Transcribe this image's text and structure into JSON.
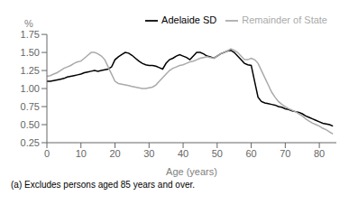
{
  "chart_data": {
    "type": "line",
    "xlabel": "Age (years)",
    "ylabel": "%",
    "annotations": [
      "(a) Excludes persons aged 85 years and over."
    ],
    "x": [
      0,
      1,
      2,
      3,
      4,
      5,
      6,
      7,
      8,
      9,
      10,
      11,
      12,
      13,
      14,
      15,
      16,
      17,
      18,
      19,
      20,
      21,
      22,
      23,
      24,
      25,
      26,
      27,
      28,
      29,
      30,
      31,
      32,
      33,
      34,
      35,
      36,
      37,
      38,
      39,
      40,
      41,
      42,
      43,
      44,
      45,
      46,
      47,
      48,
      49,
      50,
      51,
      52,
      53,
      54,
      55,
      56,
      57,
      58,
      59,
      60,
      61,
      62,
      63,
      64,
      65,
      66,
      67,
      68,
      69,
      70,
      71,
      72,
      73,
      74,
      75,
      76,
      77,
      78,
      79,
      80,
      81,
      82,
      83,
      84
    ],
    "series": [
      {
        "name": "Adelaide SD",
        "color": "#000000",
        "values": [
          1.1,
          1.1,
          1.11,
          1.12,
          1.13,
          1.14,
          1.16,
          1.17,
          1.18,
          1.19,
          1.2,
          1.22,
          1.23,
          1.24,
          1.25,
          1.24,
          1.25,
          1.26,
          1.27,
          1.3,
          1.4,
          1.44,
          1.47,
          1.5,
          1.49,
          1.46,
          1.42,
          1.38,
          1.35,
          1.33,
          1.32,
          1.32,
          1.31,
          1.29,
          1.27,
          1.35,
          1.4,
          1.42,
          1.45,
          1.47,
          1.45,
          1.43,
          1.4,
          1.45,
          1.5,
          1.5,
          1.48,
          1.45,
          1.44,
          1.42,
          1.45,
          1.48,
          1.5,
          1.52,
          1.53,
          1.5,
          1.45,
          1.4,
          1.35,
          1.33,
          1.32,
          1.1,
          0.88,
          0.82,
          0.8,
          0.79,
          0.78,
          0.77,
          0.75,
          0.74,
          0.72,
          0.71,
          0.69,
          0.68,
          0.67,
          0.65,
          0.62,
          0.6,
          0.58,
          0.56,
          0.54,
          0.52,
          0.51,
          0.5,
          0.48
        ]
      },
      {
        "name": "Remainder of State",
        "color": "#aaaaaa",
        "values": [
          1.17,
          1.18,
          1.2,
          1.22,
          1.25,
          1.28,
          1.3,
          1.32,
          1.35,
          1.37,
          1.38,
          1.42,
          1.46,
          1.5,
          1.5,
          1.48,
          1.45,
          1.4,
          1.3,
          1.2,
          1.1,
          1.07,
          1.06,
          1.05,
          1.04,
          1.03,
          1.02,
          1.01,
          1.0,
          1.0,
          1.01,
          1.02,
          1.05,
          1.1,
          1.15,
          1.2,
          1.25,
          1.28,
          1.3,
          1.32,
          1.33,
          1.35,
          1.37,
          1.38,
          1.4,
          1.42,
          1.43,
          1.44,
          1.43,
          1.42,
          1.45,
          1.48,
          1.5,
          1.52,
          1.55,
          1.53,
          1.5,
          1.45,
          1.4,
          1.4,
          1.42,
          1.4,
          1.35,
          1.25,
          1.15,
          1.05,
          0.95,
          0.88,
          0.82,
          0.78,
          0.75,
          0.72,
          0.7,
          0.68,
          0.65,
          0.62,
          0.58,
          0.55,
          0.52,
          0.5,
          0.48,
          0.45,
          0.43,
          0.4,
          0.37
        ]
      }
    ],
    "xlim": [
      0,
      85
    ],
    "ylim": [
      0.25,
      1.75
    ],
    "xticks": [
      0,
      10,
      20,
      30,
      40,
      50,
      60,
      70,
      80
    ],
    "yticks": [
      0.25,
      {
        "value": 0.5,
        "label": "0.50"
      },
      0.75,
      {
        "value": 1.0,
        "label": "1.00"
      },
      1.25,
      {
        "value": 1.5,
        "label": "1.50"
      },
      1.75
    ],
    "grid": false,
    "legend": "upper right"
  }
}
